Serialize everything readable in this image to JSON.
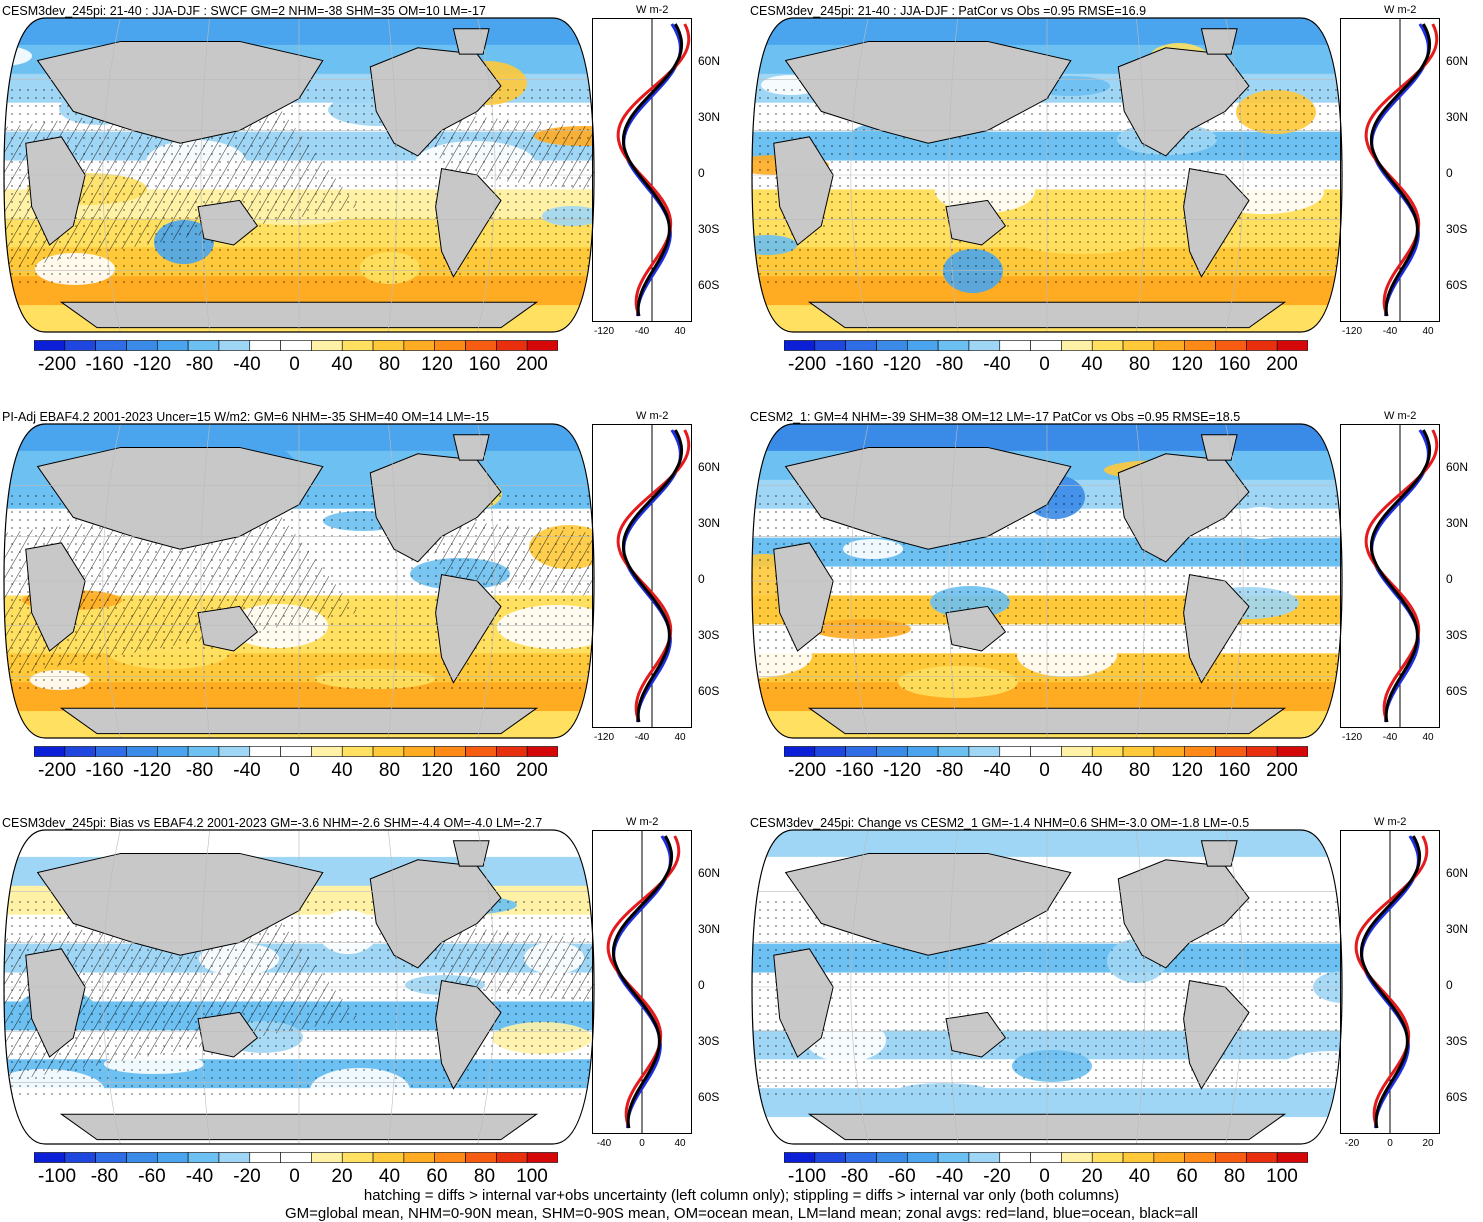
{
  "panels": [
    {
      "title": "CESM3dev_245pi: 21-40 : JJA-DJF : SWCF GM=2 NHM=-38 SHM=35 OM=10 LM=-17",
      "colorbar_labels": [
        "-200",
        "-160",
        "-120",
        "-80",
        "-40",
        "0",
        "40",
        "80",
        "120",
        "160",
        "200"
      ],
      "zonal_xticks": [
        "-120",
        "-40",
        "40"
      ],
      "zonal_units": "W m-2",
      "hatched": true
    },
    {
      "title": "CESM3dev_245pi: 21-40 : JJA-DJF : PatCor vs Obs =0.95 RMSE=16.9",
      "colorbar_labels": [
        "-200",
        "-160",
        "-120",
        "-80",
        "-40",
        "0",
        "40",
        "80",
        "120",
        "160",
        "200"
      ],
      "zonal_xticks": [
        "-120",
        "-40",
        "40"
      ],
      "zonal_units": "W m-2",
      "hatched": false
    },
    {
      "title": "PI-Adj EBAF4.2 2001-2023 Uncer=15 W/m2: GM=6 NHM=-35 SHM=40 OM=14 LM=-15",
      "colorbar_labels": [
        "-200",
        "-160",
        "-120",
        "-80",
        "-40",
        "0",
        "40",
        "80",
        "120",
        "160",
        "200"
      ],
      "zonal_xticks": [
        "-120",
        "-40",
        "40"
      ],
      "zonal_units": "W m-2",
      "hatched": true
    },
    {
      "title": "CESM2_1: GM=4 NHM=-39 SHM=38 OM=12 LM=-17 PatCor vs Obs =0.95 RMSE=18.5",
      "colorbar_labels": [
        "-200",
        "-160",
        "-120",
        "-80",
        "-40",
        "0",
        "40",
        "80",
        "120",
        "160",
        "200"
      ],
      "zonal_xticks": [
        "-120",
        "-40",
        "40"
      ],
      "zonal_units": "W m-2",
      "hatched": false
    },
    {
      "title": "CESM3dev_245pi: Bias vs EBAF4.2 2001-2023 GM=-3.6 NHM=-2.6 SHM=-4.4 OM=-4.0 LM=-2.7",
      "colorbar_labels": [
        "-100",
        "-80",
        "-60",
        "-40",
        "-20",
        "0",
        "20",
        "40",
        "60",
        "80",
        "100"
      ],
      "zonal_xticks": [
        "-40",
        "0",
        "40"
      ],
      "zonal_units": "W m-2",
      "hatched": true
    },
    {
      "title": "CESM3dev_245pi: Change vs CESM2_1 GM=-1.4 NHM=0.6 SHM=-3.0 OM=-1.8 LM=-0.5",
      "colorbar_labels": [
        "-100",
        "-80",
        "-60",
        "-40",
        "-20",
        "0",
        "20",
        "40",
        "60",
        "80",
        "100"
      ],
      "zonal_xticks": [
        "-20",
        "0",
        "20"
      ],
      "zonal_units": "W m-2",
      "hatched": false
    }
  ],
  "lat_labels": [
    "60N",
    "30N",
    "0",
    "30S",
    "60S"
  ],
  "legend": {
    "red": "land",
    "blue": "ocean",
    "black": "all"
  },
  "colors": {
    "ocean_red": "#e41a1c",
    "zonal_blue": "#1f2fe0",
    "land": "#c8c8c8",
    "palette": [
      "#0a1fd6",
      "#1f47e0",
      "#2e6de6",
      "#3a8be8",
      "#4aa5ee",
      "#6cc0f2",
      "#9fd6f5",
      "#ffffff",
      "#ffffff",
      "#fff2a6",
      "#ffe060",
      "#ffc93a",
      "#ffac22",
      "#ff8a18",
      "#f65d12",
      "#e8300e",
      "#d40808"
    ]
  },
  "footer": [
    "hatching = diffs > internal var+obs uncertainty (left column only); stippling = diffs > internal var only (both columns)",
    "GM=global mean, NHM=0-90N mean, SHM=0-90S mean, OM=ocean mean, LM=land mean; zonal avgs: red=land, blue=ocean, black=all"
  ]
}
